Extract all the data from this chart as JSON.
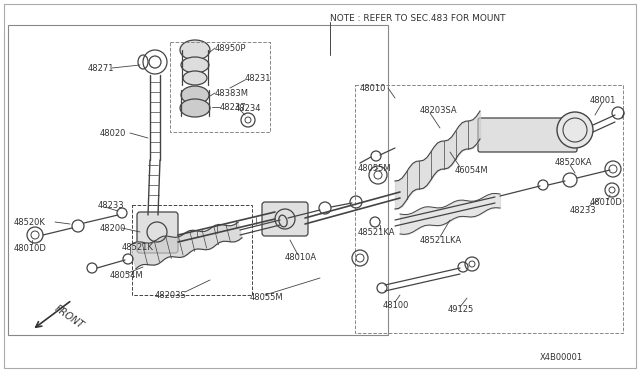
{
  "bg_color": "#ffffff",
  "line_color": "#444444",
  "text_color": "#333333",
  "note_text": "NOTE : REFER TO SEC.483 FOR MOUNT",
  "diagram_id": "X4B00001",
  "front_label": "FRONT"
}
